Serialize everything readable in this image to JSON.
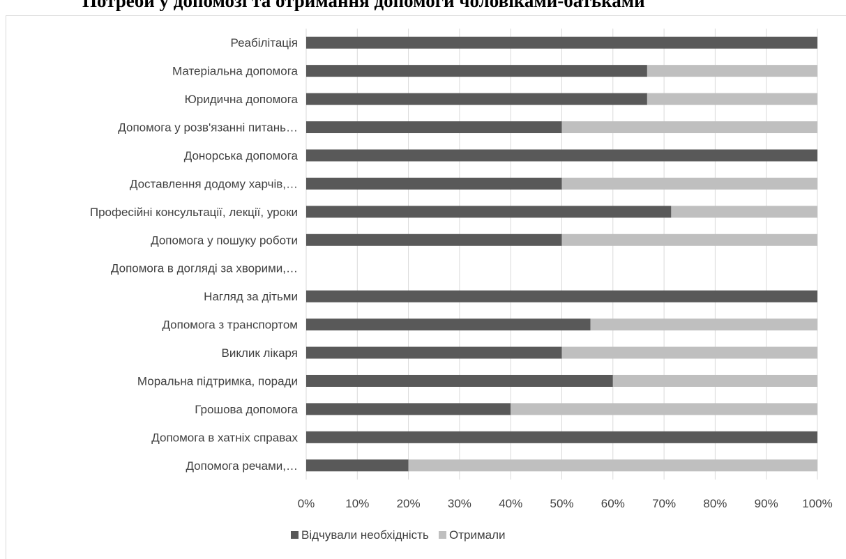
{
  "title": "Потреби у допомозі та отримання допомоги чоловіками-батьками",
  "chart_data": {
    "type": "bar",
    "orientation": "horizontal",
    "stacked": "percent",
    "categories": [
      "Реабілітація",
      "Матеріальна допомога",
      "Юридична допомога",
      "Допомога у розв'язанні питань…",
      "Донорська допомога",
      "Доставлення додому харчів,…",
      "Професійні консультації, лекції, уроки",
      "Допомога у пошуку роботи",
      "Допомога в догляді за хворими,…",
      "Нагляд за дітьми",
      "Допомога з транспортом",
      "Виклик лікаря",
      "Моральна підтримка, поради",
      "Грошова допомога",
      "Допомога в хатніх справах",
      "Допомога речами,…"
    ],
    "series": [
      {
        "name": "Відчували необхідність",
        "color": "#595959",
        "values": [
          100,
          66.7,
          66.7,
          50,
          100,
          50,
          71.4,
          50,
          0,
          100,
          55.6,
          50,
          60,
          40,
          100,
          20
        ]
      },
      {
        "name": "Отримали",
        "color": "#bfbfbf",
        "values": [
          0,
          33.3,
          33.3,
          50,
          0,
          50,
          28.6,
          50,
          0,
          0,
          44.4,
          50,
          40,
          60,
          0,
          80
        ]
      }
    ],
    "xlim": [
      0,
      100
    ],
    "xticks": [
      "0%",
      "10%",
      "20%",
      "30%",
      "40%",
      "50%",
      "60%",
      "70%",
      "80%",
      "90%",
      "100%"
    ],
    "grid": "vertical",
    "legend": "bottom"
  }
}
